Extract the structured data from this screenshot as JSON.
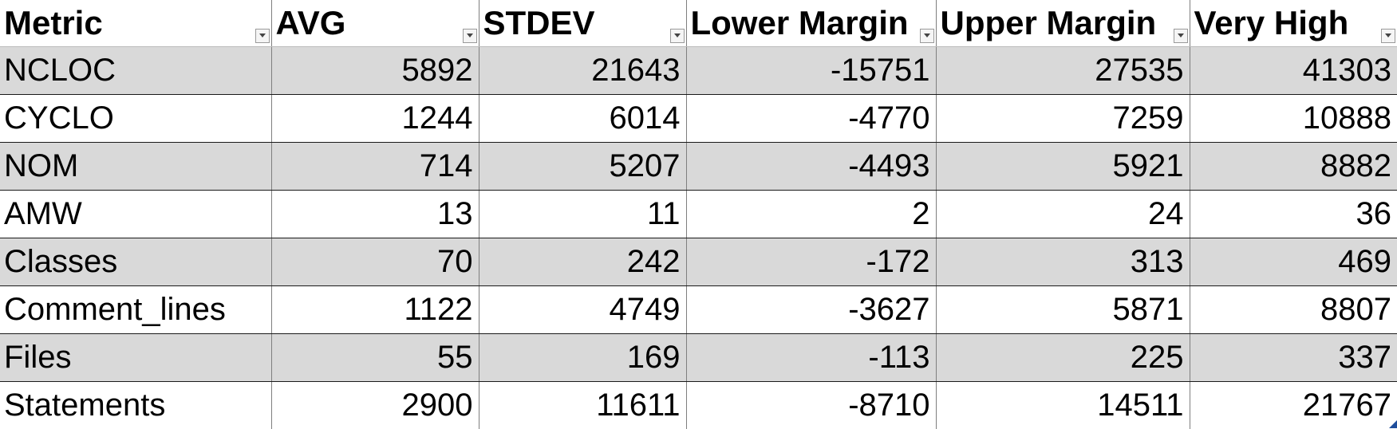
{
  "table": {
    "headers": [
      "Metric",
      "AVG",
      "STDEV",
      "Lower Margin",
      "Upper Margin",
      "Very High"
    ],
    "rows": [
      {
        "metric": "NCLOC",
        "avg": "5892",
        "stdev": "21643",
        "lower": "-15751",
        "upper": "27535",
        "high": "41303"
      },
      {
        "metric": "CYCLO",
        "avg": "1244",
        "stdev": "6014",
        "lower": "-4770",
        "upper": "7259",
        "high": "10888"
      },
      {
        "metric": "NOM",
        "avg": "714",
        "stdev": "5207",
        "lower": "-4493",
        "upper": "5921",
        "high": "8882"
      },
      {
        "metric": "AMW",
        "avg": "13",
        "stdev": "11",
        "lower": "2",
        "upper": "24",
        "high": "36"
      },
      {
        "metric": "Classes",
        "avg": "70",
        "stdev": "242",
        "lower": "-172",
        "upper": "313",
        "high": "469"
      },
      {
        "metric": "Comment_lines",
        "avg": "1122",
        "stdev": "4749",
        "lower": "-3627",
        "upper": "5871",
        "high": "8807"
      },
      {
        "metric": "Files",
        "avg": "55",
        "stdev": "169",
        "lower": "-113",
        "upper": "225",
        "high": "337"
      },
      {
        "metric": "Statements",
        "avg": "2900",
        "stdev": "11611",
        "lower": "-8710",
        "upper": "14511",
        "high": "21767"
      }
    ]
  },
  "colors": {
    "band_shade": "#d9d9d9",
    "band_plain": "#ffffff",
    "resize_handle": "#1f4e9c"
  },
  "icons": {
    "filter": "filter-dropdown-icon",
    "resize": "table-resize-handle-icon"
  }
}
